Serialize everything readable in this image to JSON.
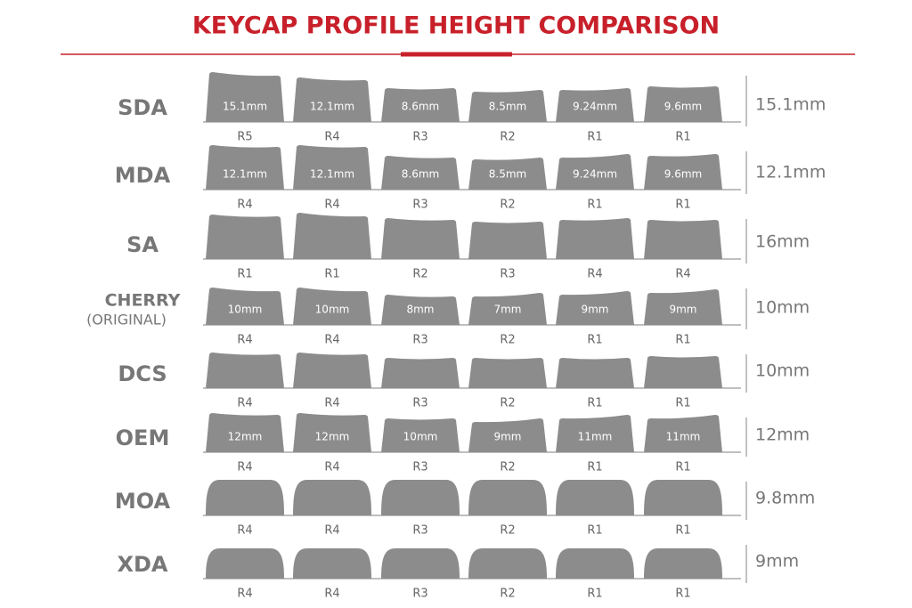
{
  "title": "KEYCAP PROFILE HEIGHT COMPARISON",
  "profiles": [
    {
      "name": "SDA",
      "height": "15.1mm",
      "keys": [
        {
          "label": "15.1mm",
          "row": "R5"
        },
        {
          "label": "12.1mm",
          "row": "R4"
        },
        {
          "label": "8.6mm",
          "row": "R3"
        },
        {
          "label": "8.5mm",
          "row": "R2"
        },
        {
          "label": "9.24mm",
          "row": "R1"
        },
        {
          "label": "9.6mm",
          "row": "R1"
        }
      ]
    },
    {
      "name": "MDA",
      "height": "12.1mm",
      "keys": [
        {
          "label": "12.1mm",
          "row": "R4"
        },
        {
          "label": "12.1mm",
          "row": "R4"
        },
        {
          "label": "8.6mm",
          "row": "R3"
        },
        {
          "label": "8.5mm",
          "row": "R2"
        },
        {
          "label": "9.24mm",
          "row": "R1"
        },
        {
          "label": "9.6mm",
          "row": "R1"
        }
      ]
    },
    {
      "name": "SA",
      "height": "16mm",
      "keys": [
        {
          "row": "R1"
        },
        {
          "row": "R1"
        },
        {
          "row": "R2"
        },
        {
          "row": "R3"
        },
        {
          "row": "R4"
        },
        {
          "row": "R4"
        }
      ]
    },
    {
      "name": "CHERRY",
      "subtitle": "(ORIGINAL)",
      "height": "10mm",
      "keys": [
        {
          "label": "10mm",
          "row": "R4"
        },
        {
          "label": "10mm",
          "row": "R4"
        },
        {
          "label": "8mm",
          "row": "R3"
        },
        {
          "label": "7mm",
          "row": "R2"
        },
        {
          "label": "9mm",
          "row": "R1"
        },
        {
          "label": "9mm",
          "row": "R1"
        }
      ]
    },
    {
      "name": "DCS",
      "height": "10mm",
      "keys": [
        {
          "row": "R4"
        },
        {
          "row": "R4"
        },
        {
          "row": "R3"
        },
        {
          "row": "R2"
        },
        {
          "row": "R1"
        },
        {
          "row": "R1"
        }
      ]
    },
    {
      "name": "OEM",
      "height": "12mm",
      "keys": [
        {
          "label": "12mm",
          "row": "R4"
        },
        {
          "label": "12mm",
          "row": "R4"
        },
        {
          "label": "10mm",
          "row": "R3"
        },
        {
          "label": "9mm",
          "row": "R2"
        },
        {
          "label": "11mm",
          "row": "R1"
        },
        {
          "label": "11mm",
          "row": "R1"
        }
      ]
    },
    {
      "name": "MOA",
      "height": "9.8mm",
      "keys": [
        {
          "row": "R4"
        },
        {
          "row": "R4"
        },
        {
          "row": "R3"
        },
        {
          "row": "R2"
        },
        {
          "row": "R1"
        },
        {
          "row": "R1"
        }
      ]
    },
    {
      "name": "XDA",
      "height": "9mm",
      "keys": [
        {
          "row": "R4"
        },
        {
          "row": "R4"
        },
        {
          "row": "R3"
        },
        {
          "row": "R2"
        },
        {
          "row": "R1"
        },
        {
          "row": "R1"
        }
      ]
    }
  ]
}
